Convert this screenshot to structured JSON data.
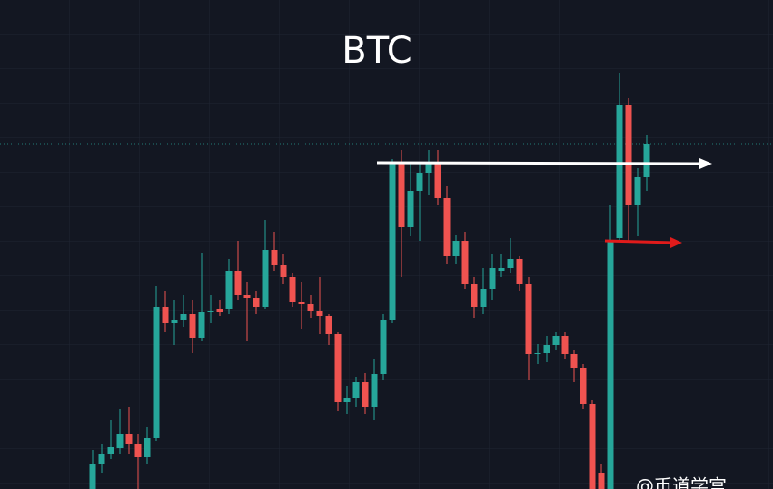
{
  "chart_data": {
    "type": "candlestick",
    "title": "BTC",
    "watermark": "@币道学宫",
    "up_color": "#26a69a",
    "down_color": "#ef5350",
    "ylim": [
      0,
      538
    ],
    "open": [
      0,
      28,
      38,
      45,
      60,
      50,
      35,
      56,
      200,
      183,
      186,
      193,
      166,
      195,
      198,
      198,
      240,
      213,
      210,
      200,
      263,
      246,
      233,
      206,
      203,
      196,
      190,
      170,
      96,
      100,
      118,
      90,
      126,
      186,
      358,
      288,
      328,
      348,
      360,
      320,
      256,
      273,
      226,
      200,
      220,
      240,
      243,
      253,
      226,
      148,
      150,
      158,
      168,
      148,
      133,
      93,
      18,
      0,
      276,
      423,
      313,
      343
    ],
    "close": [
      28,
      38,
      46,
      60,
      50,
      35,
      56,
      200,
      183,
      186,
      193,
      166,
      195,
      196,
      195,
      240,
      213,
      210,
      200,
      263,
      246,
      233,
      206,
      203,
      196,
      190,
      170,
      96,
      100,
      118,
      90,
      126,
      186,
      358,
      288,
      328,
      348,
      360,
      320,
      256,
      273,
      226,
      200,
      220,
      243,
      243,
      253,
      226,
      148,
      150,
      158,
      168,
      148,
      133,
      93,
      0,
      0,
      273,
      423,
      313,
      343,
      380
    ],
    "high": [
      43,
      50,
      76,
      88,
      90,
      60,
      68,
      223,
      218,
      208,
      213,
      208,
      260,
      213,
      208,
      253,
      273,
      228,
      218,
      296,
      283,
      258,
      238,
      228,
      213,
      233,
      193,
      173,
      113,
      123,
      128,
      143,
      193,
      363,
      373,
      360,
      358,
      373,
      373,
      333,
      280,
      283,
      233,
      243,
      258,
      258,
      276,
      256,
      233,
      160,
      168,
      173,
      173,
      153,
      138,
      98,
      28,
      313,
      458,
      430,
      353,
      390
    ],
    "low": [
      0,
      18,
      33,
      38,
      38,
      0,
      28,
      53,
      173,
      158,
      178,
      150,
      163,
      183,
      190,
      193,
      208,
      163,
      193,
      198,
      240,
      226,
      200,
      176,
      188,
      170,
      158,
      86,
      83,
      90,
      83,
      76,
      120,
      183,
      233,
      278,
      273,
      323,
      313,
      248,
      248,
      220,
      188,
      193,
      208,
      233,
      238,
      218,
      120,
      138,
      140,
      153,
      143,
      118,
      88,
      0,
      0,
      0,
      273,
      273,
      278,
      328
    ]
  }
}
